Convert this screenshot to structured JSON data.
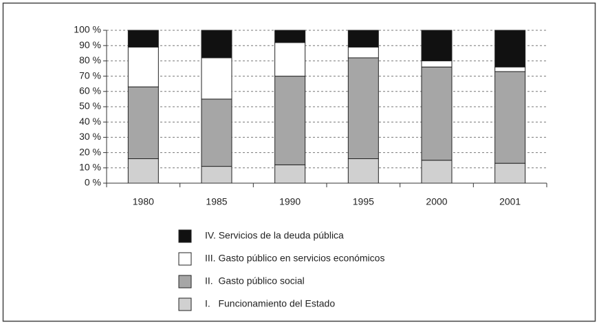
{
  "chart_data": {
    "type": "stacked-bar",
    "categories": [
      "1980",
      "1985",
      "1990",
      "1995",
      "2000",
      "2001"
    ],
    "series": [
      {
        "name": "I.   Funcionamiento del Estado",
        "color": "#d0d0d0",
        "values": [
          16,
          11,
          12,
          16,
          15,
          13
        ]
      },
      {
        "name": "II.  Gasto público social",
        "color": "#a6a6a6",
        "values": [
          47,
          44,
          58,
          66,
          61,
          60
        ]
      },
      {
        "name": "III. Gasto público en servicios económicos",
        "color": "#ffffff",
        "values": [
          26,
          27,
          22,
          7,
          4,
          3
        ]
      },
      {
        "name": "IV. Servicios de la deuda pública",
        "color": "#111111",
        "values": [
          11,
          18,
          8,
          11,
          20,
          24
        ]
      }
    ],
    "ylim": [
      0,
      100
    ],
    "yticks": [
      {
        "value": 0,
        "label": "0 %"
      },
      {
        "value": 10,
        "label": "10 %"
      },
      {
        "value": 20,
        "label": "20 %"
      },
      {
        "value": 30,
        "label": "30 %"
      },
      {
        "value": 40,
        "label": "40 %"
      },
      {
        "value": 50,
        "label": "50 %"
      },
      {
        "value": 60,
        "label": "60 %"
      },
      {
        "value": 70,
        "label": "70 %"
      },
      {
        "value": 80,
        "label": "80 %"
      },
      {
        "value": 90,
        "label": "90 %"
      },
      {
        "value": 100,
        "label": "100 %"
      }
    ],
    "grid": true
  }
}
